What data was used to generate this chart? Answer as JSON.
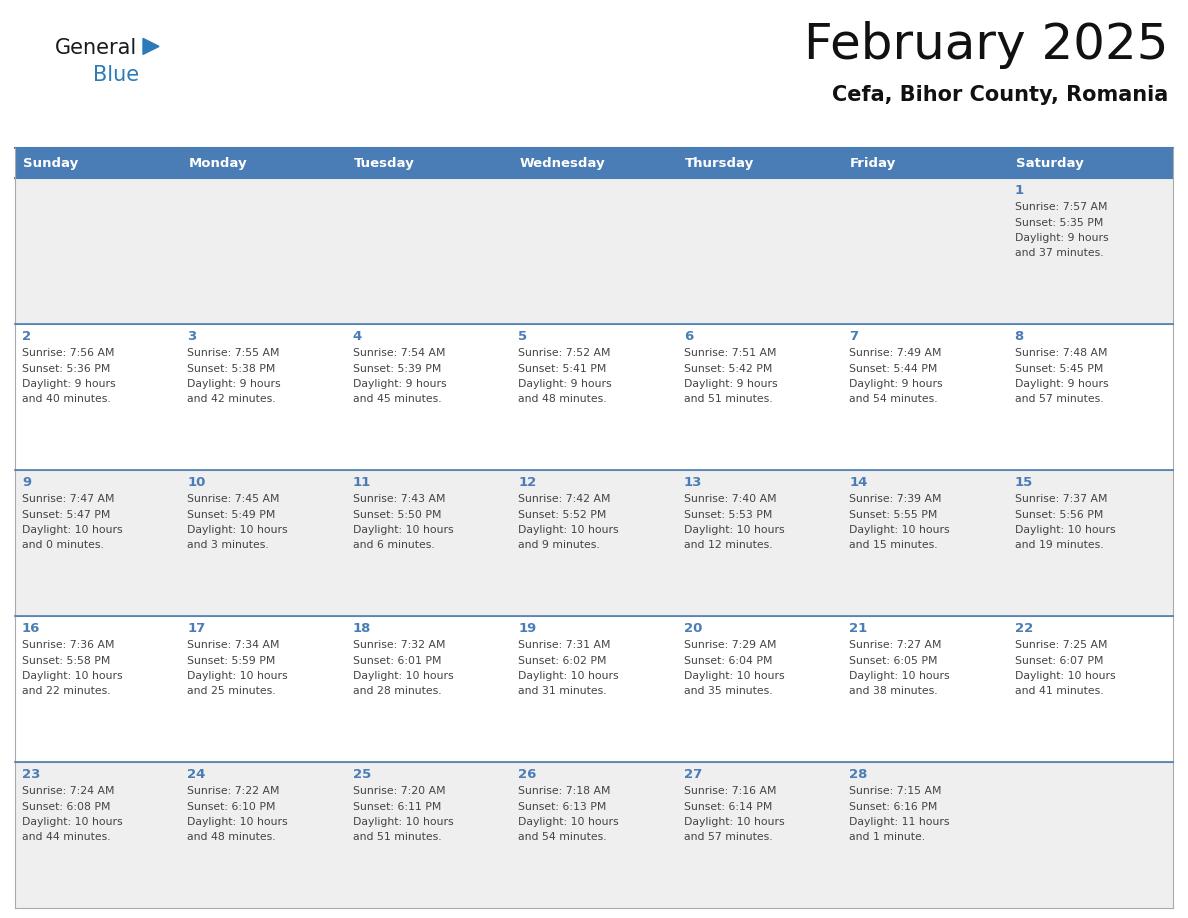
{
  "title": "February 2025",
  "subtitle": "Cefa, Bihor County, Romania",
  "days_of_week": [
    "Sunday",
    "Monday",
    "Tuesday",
    "Wednesday",
    "Thursday",
    "Friday",
    "Saturday"
  ],
  "header_bg_color": "#4A7DB5",
  "header_text_color": "#FFFFFF",
  "cell_bg_color_light": "#EFEFEF",
  "cell_bg_color_white": "#FFFFFF",
  "day_number_color": "#4A7DB5",
  "info_text_color": "#444444",
  "border_color": "#4A7DB5",
  "row_line_color": "#AAAAAA",
  "logo_general_color": "#1a1a1a",
  "logo_blue_color": "#2B7BB9",
  "calendar_data": [
    {
      "day": 1,
      "col": 6,
      "row": 0,
      "sunrise": "7:57 AM",
      "sunset": "5:35 PM",
      "daylight_h": "9 hours",
      "daylight_m": "37 minutes"
    },
    {
      "day": 2,
      "col": 0,
      "row": 1,
      "sunrise": "7:56 AM",
      "sunset": "5:36 PM",
      "daylight_h": "9 hours",
      "daylight_m": "40 minutes"
    },
    {
      "day": 3,
      "col": 1,
      "row": 1,
      "sunrise": "7:55 AM",
      "sunset": "5:38 PM",
      "daylight_h": "9 hours",
      "daylight_m": "42 minutes"
    },
    {
      "day": 4,
      "col": 2,
      "row": 1,
      "sunrise": "7:54 AM",
      "sunset": "5:39 PM",
      "daylight_h": "9 hours",
      "daylight_m": "45 minutes"
    },
    {
      "day": 5,
      "col": 3,
      "row": 1,
      "sunrise": "7:52 AM",
      "sunset": "5:41 PM",
      "daylight_h": "9 hours",
      "daylight_m": "48 minutes"
    },
    {
      "day": 6,
      "col": 4,
      "row": 1,
      "sunrise": "7:51 AM",
      "sunset": "5:42 PM",
      "daylight_h": "9 hours",
      "daylight_m": "51 minutes"
    },
    {
      "day": 7,
      "col": 5,
      "row": 1,
      "sunrise": "7:49 AM",
      "sunset": "5:44 PM",
      "daylight_h": "9 hours",
      "daylight_m": "54 minutes"
    },
    {
      "day": 8,
      "col": 6,
      "row": 1,
      "sunrise": "7:48 AM",
      "sunset": "5:45 PM",
      "daylight_h": "9 hours",
      "daylight_m": "57 minutes"
    },
    {
      "day": 9,
      "col": 0,
      "row": 2,
      "sunrise": "7:47 AM",
      "sunset": "5:47 PM",
      "daylight_h": "10 hours",
      "daylight_m": "0 minutes"
    },
    {
      "day": 10,
      "col": 1,
      "row": 2,
      "sunrise": "7:45 AM",
      "sunset": "5:49 PM",
      "daylight_h": "10 hours",
      "daylight_m": "3 minutes"
    },
    {
      "day": 11,
      "col": 2,
      "row": 2,
      "sunrise": "7:43 AM",
      "sunset": "5:50 PM",
      "daylight_h": "10 hours",
      "daylight_m": "6 minutes"
    },
    {
      "day": 12,
      "col": 3,
      "row": 2,
      "sunrise": "7:42 AM",
      "sunset": "5:52 PM",
      "daylight_h": "10 hours",
      "daylight_m": "9 minutes"
    },
    {
      "day": 13,
      "col": 4,
      "row": 2,
      "sunrise": "7:40 AM",
      "sunset": "5:53 PM",
      "daylight_h": "10 hours",
      "daylight_m": "12 minutes"
    },
    {
      "day": 14,
      "col": 5,
      "row": 2,
      "sunrise": "7:39 AM",
      "sunset": "5:55 PM",
      "daylight_h": "10 hours",
      "daylight_m": "15 minutes"
    },
    {
      "day": 15,
      "col": 6,
      "row": 2,
      "sunrise": "7:37 AM",
      "sunset": "5:56 PM",
      "daylight_h": "10 hours",
      "daylight_m": "19 minutes"
    },
    {
      "day": 16,
      "col": 0,
      "row": 3,
      "sunrise": "7:36 AM",
      "sunset": "5:58 PM",
      "daylight_h": "10 hours",
      "daylight_m": "22 minutes"
    },
    {
      "day": 17,
      "col": 1,
      "row": 3,
      "sunrise": "7:34 AM",
      "sunset": "5:59 PM",
      "daylight_h": "10 hours",
      "daylight_m": "25 minutes"
    },
    {
      "day": 18,
      "col": 2,
      "row": 3,
      "sunrise": "7:32 AM",
      "sunset": "6:01 PM",
      "daylight_h": "10 hours",
      "daylight_m": "28 minutes"
    },
    {
      "day": 19,
      "col": 3,
      "row": 3,
      "sunrise": "7:31 AM",
      "sunset": "6:02 PM",
      "daylight_h": "10 hours",
      "daylight_m": "31 minutes"
    },
    {
      "day": 20,
      "col": 4,
      "row": 3,
      "sunrise": "7:29 AM",
      "sunset": "6:04 PM",
      "daylight_h": "10 hours",
      "daylight_m": "35 minutes"
    },
    {
      "day": 21,
      "col": 5,
      "row": 3,
      "sunrise": "7:27 AM",
      "sunset": "6:05 PM",
      "daylight_h": "10 hours",
      "daylight_m": "38 minutes"
    },
    {
      "day": 22,
      "col": 6,
      "row": 3,
      "sunrise": "7:25 AM",
      "sunset": "6:07 PM",
      "daylight_h": "10 hours",
      "daylight_m": "41 minutes"
    },
    {
      "day": 23,
      "col": 0,
      "row": 4,
      "sunrise": "7:24 AM",
      "sunset": "6:08 PM",
      "daylight_h": "10 hours",
      "daylight_m": "44 minutes"
    },
    {
      "day": 24,
      "col": 1,
      "row": 4,
      "sunrise": "7:22 AM",
      "sunset": "6:10 PM",
      "daylight_h": "10 hours",
      "daylight_m": "48 minutes"
    },
    {
      "day": 25,
      "col": 2,
      "row": 4,
      "sunrise": "7:20 AM",
      "sunset": "6:11 PM",
      "daylight_h": "10 hours",
      "daylight_m": "51 minutes"
    },
    {
      "day": 26,
      "col": 3,
      "row": 4,
      "sunrise": "7:18 AM",
      "sunset": "6:13 PM",
      "daylight_h": "10 hours",
      "daylight_m": "54 minutes"
    },
    {
      "day": 27,
      "col": 4,
      "row": 4,
      "sunrise": "7:16 AM",
      "sunset": "6:14 PM",
      "daylight_h": "10 hours",
      "daylight_m": "57 minutes"
    },
    {
      "day": 28,
      "col": 5,
      "row": 4,
      "sunrise": "7:15 AM",
      "sunset": "6:16 PM",
      "daylight_h": "11 hours",
      "daylight_m": "1 minute"
    }
  ]
}
